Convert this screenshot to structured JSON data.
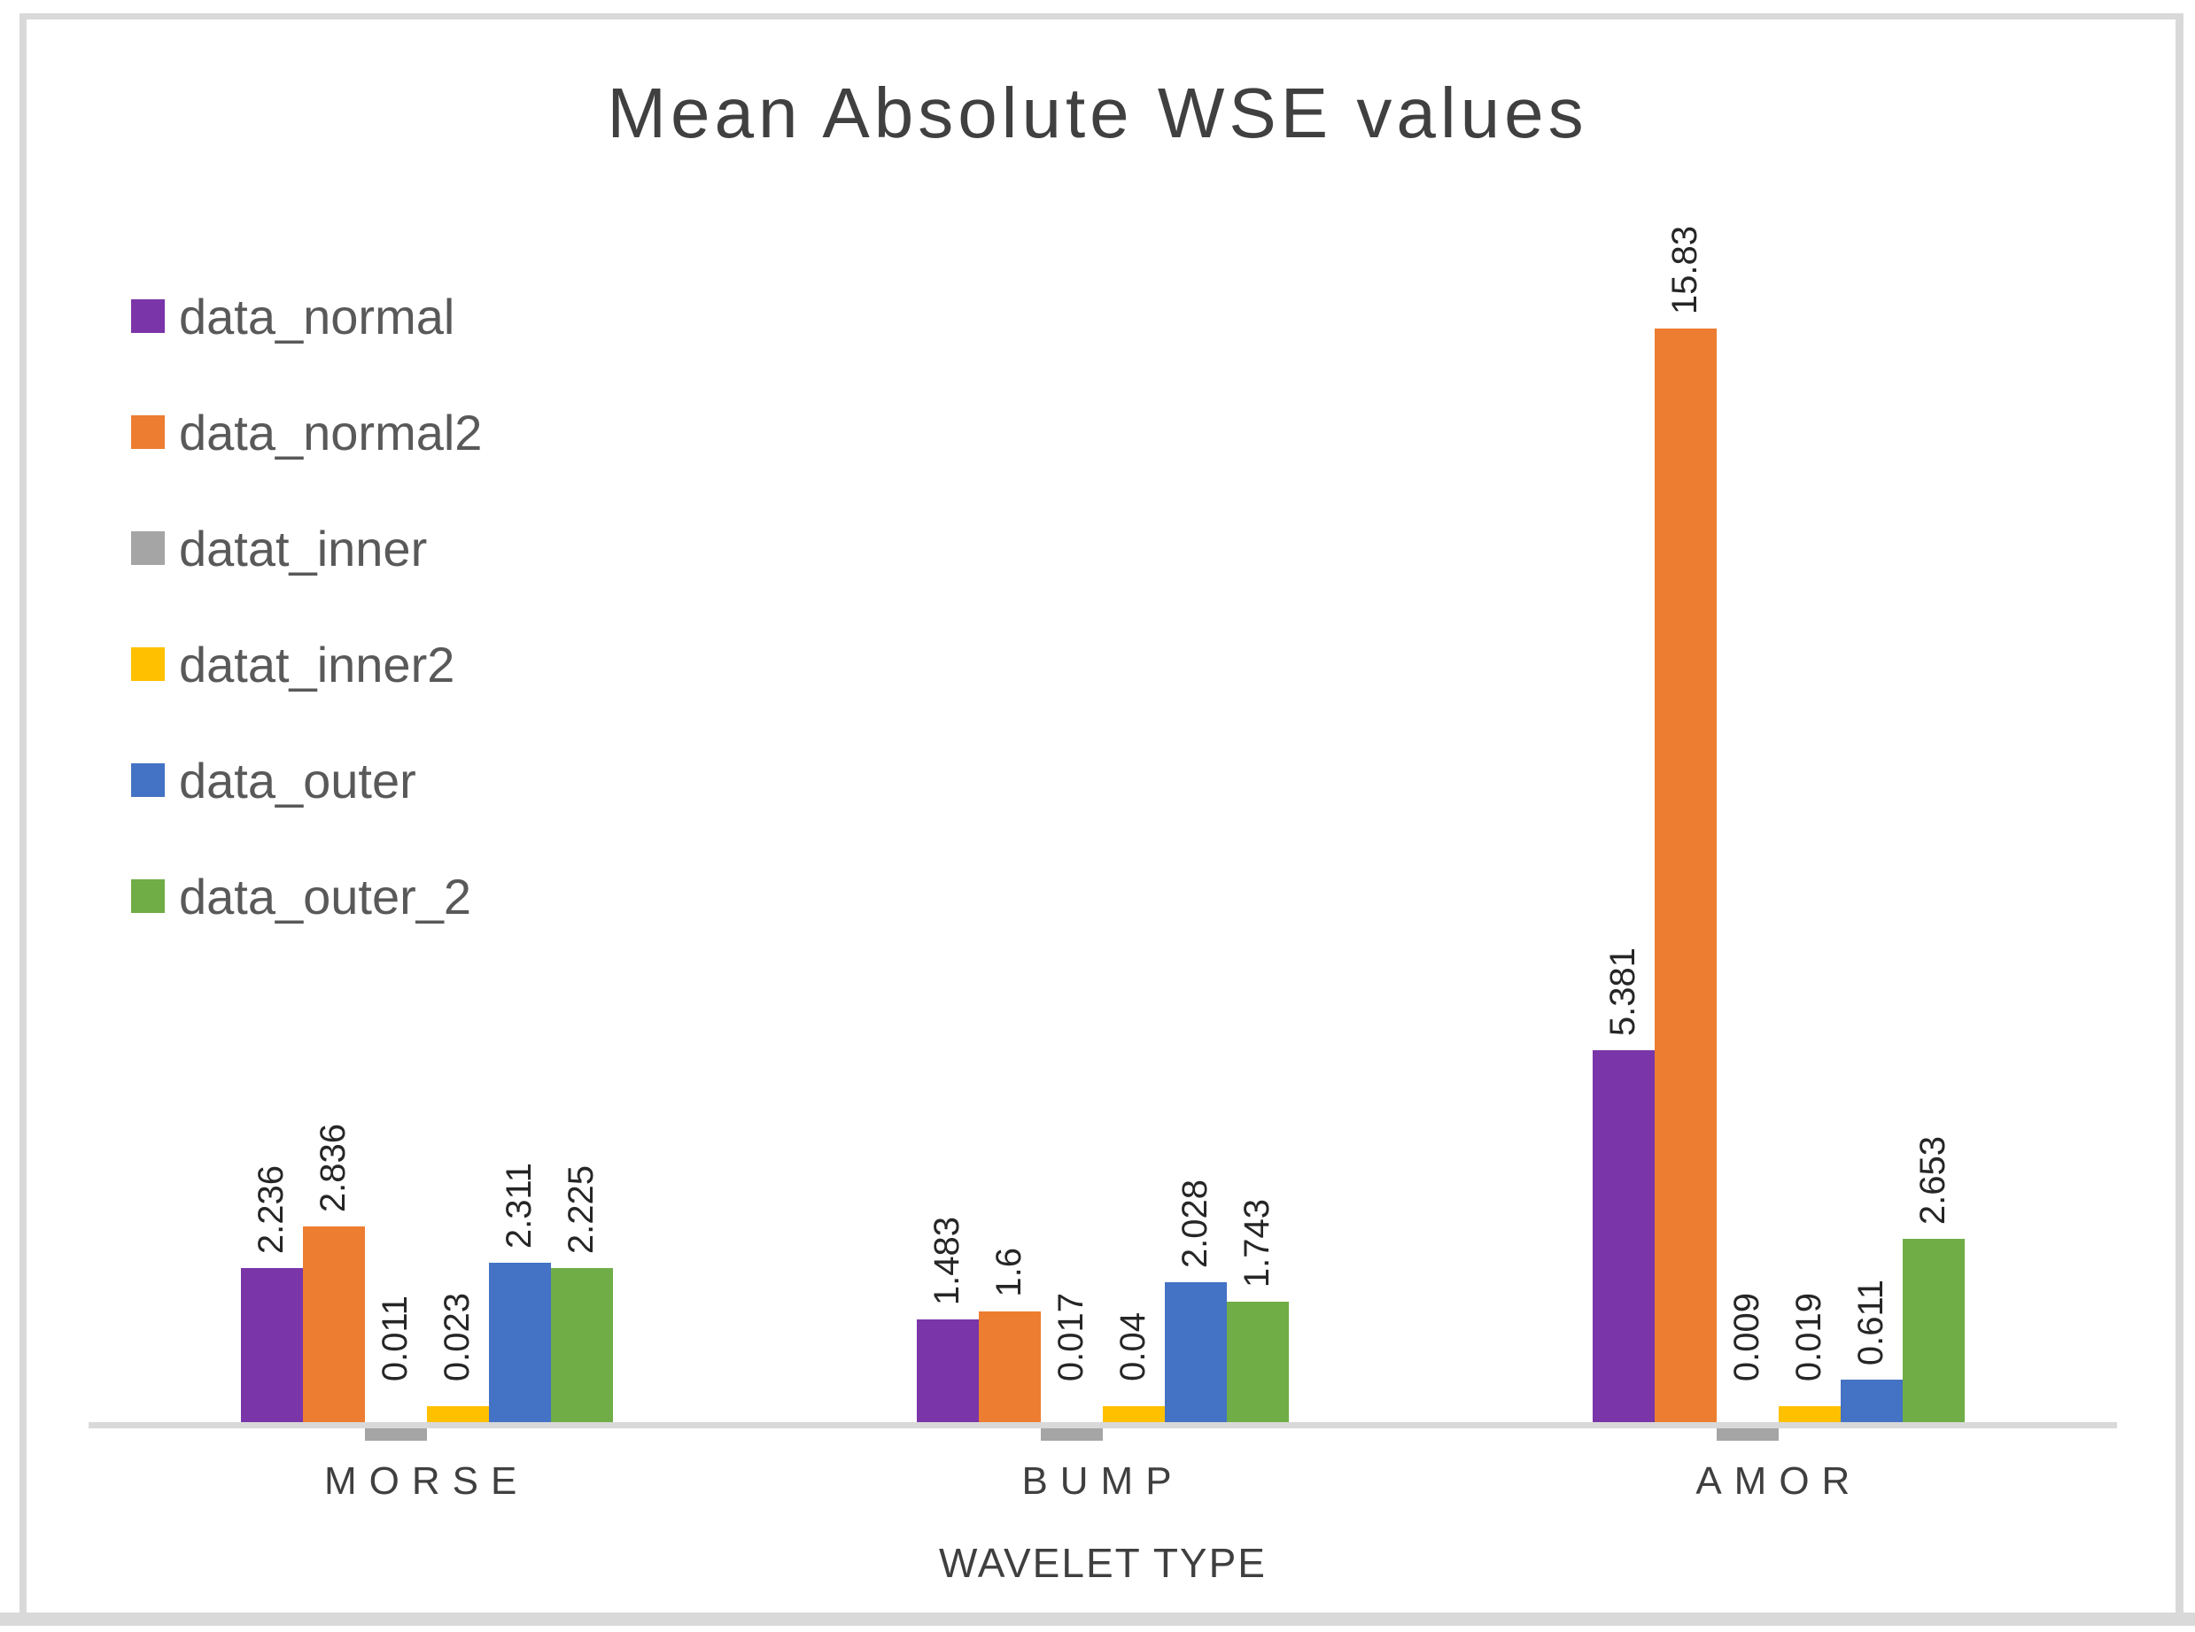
{
  "page": {
    "background_color": "#ffffff",
    "frame_color": "#d9d9d9",
    "axis_line_color": "#d9d9d9",
    "title_color": "#404040",
    "legend_text_color": "#595959",
    "value_label_color": "#262626",
    "category_label_color": "#3f3f3f"
  },
  "chart_data": {
    "type": "bar",
    "title": "Mean Absolute WSE values",
    "xlabel": "WAVELET TYPE",
    "ylabel": "",
    "categories": [
      "MORSE",
      "BUMP",
      "AMOR"
    ],
    "series": [
      {
        "name": "data_normal",
        "color": "#7a35a8",
        "values": [
          2.236,
          1.483,
          5.381
        ],
        "labels": [
          "2.236",
          "1.483",
          "5.381"
        ]
      },
      {
        "name": "data_normal2",
        "color": "#ed7d31",
        "values": [
          2.836,
          1.6,
          15.83
        ],
        "labels": [
          "2.836",
          "1.6",
          "15.83"
        ]
      },
      {
        "name": "datat_inner",
        "color": "#a5a5a5",
        "values": [
          0.011,
          0.017,
          0.009
        ],
        "labels": [
          "0.011",
          "0.017",
          "0.009"
        ]
      },
      {
        "name": "datat_inner2",
        "color": "#ffc000",
        "values": [
          0.023,
          0.04,
          0.019
        ],
        "labels": [
          "0.023",
          "0.04",
          "0.019"
        ]
      },
      {
        "name": "data_outer",
        "color": "#4472c4",
        "values": [
          2.311,
          2.028,
          0.611
        ],
        "labels": [
          "2.311",
          "2.028",
          "0.611"
        ]
      },
      {
        "name": "data_outer_2",
        "color": "#70ad47",
        "values": [
          2.225,
          1.743,
          2.653
        ],
        "labels": [
          "2.225",
          "1.743",
          "2.653"
        ]
      }
    ],
    "legend_position": "left",
    "grid": false,
    "y_axis_visible": false,
    "ylim": [
      0,
      16.5
    ],
    "data_labels": {
      "rotation": -90,
      "position": "outside-end"
    }
  }
}
